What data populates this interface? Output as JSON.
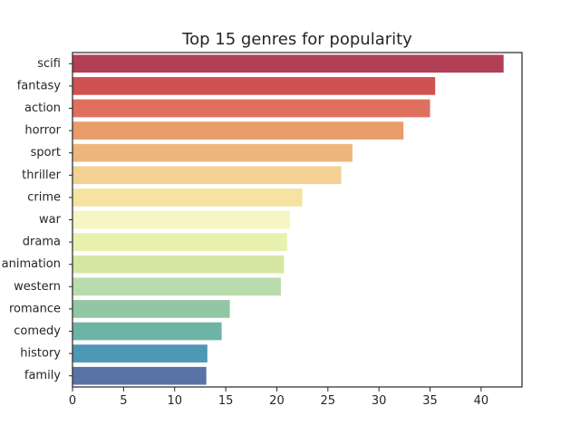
{
  "chart_data": {
    "type": "bar",
    "orientation": "horizontal",
    "title": "Top 15 genres for popularity",
    "xlabel": "",
    "ylabel": "",
    "xlim": [
      0,
      44
    ],
    "xticks": [
      0,
      5,
      10,
      15,
      20,
      25,
      30,
      35,
      40
    ],
    "grid": false,
    "categories": [
      "scifi",
      "fantasy",
      "action",
      "horror",
      "sport",
      "thriller",
      "crime",
      "war",
      "drama",
      "animation",
      "western",
      "romance",
      "comedy",
      "history",
      "family"
    ],
    "values": [
      42.2,
      35.5,
      35.0,
      32.4,
      27.4,
      26.3,
      22.5,
      21.3,
      21.0,
      20.7,
      20.4,
      15.4,
      14.6,
      13.2,
      13.1
    ],
    "colors": [
      "#b13f55",
      "#cf5150",
      "#df7060",
      "#e89c6a",
      "#efb67c",
      "#f2d192",
      "#f6e3a2",
      "#f6f5c3",
      "#e8f0ae",
      "#d6e7a3",
      "#b9dcac",
      "#93c6a5",
      "#6db3a6",
      "#4d98b4",
      "#5973a6"
    ]
  }
}
